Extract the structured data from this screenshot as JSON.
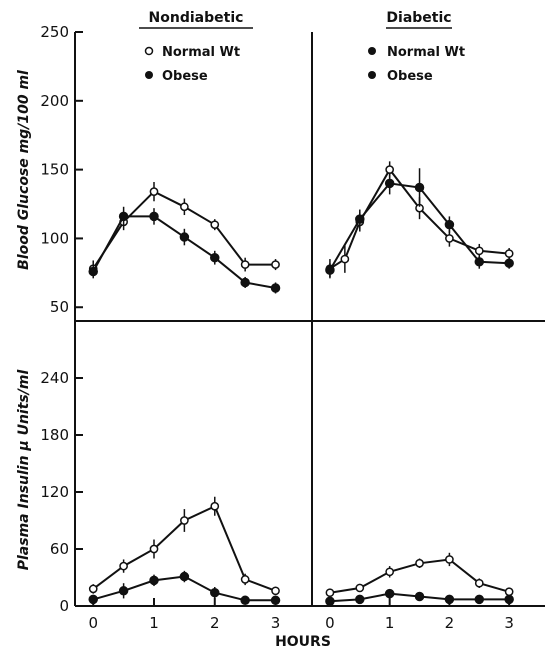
{
  "chart_data": [
    {
      "type": "line",
      "title": "Nondiabetic",
      "ylabel": "Blood Glucose mg/100 ml",
      "ylim": [
        40,
        250
      ],
      "yticks": [
        50,
        100,
        150,
        200,
        250
      ],
      "xlim": [
        -0.3,
        3.6
      ],
      "series": [
        {
          "name": "Normal Wt",
          "marker": "open",
          "x": [
            0,
            0.5,
            1,
            1.5,
            2,
            2.5,
            3
          ],
          "y": [
            78,
            112,
            134,
            123,
            110,
            81,
            81
          ],
          "err": [
            6,
            6,
            7,
            6,
            4,
            5,
            4
          ]
        },
        {
          "name": "Obese",
          "marker": "filled",
          "x": [
            0,
            0.5,
            1,
            1.5,
            2,
            2.5,
            3
          ],
          "y": [
            76,
            116,
            116,
            101,
            86,
            68,
            64
          ],
          "err": [
            5,
            7,
            6,
            6,
            5,
            4,
            4
          ]
        }
      ]
    },
    {
      "type": "line",
      "title": "Diabetic",
      "ylabel": "",
      "ylim": [
        40,
        250
      ],
      "xlim": [
        -0.3,
        3.6
      ],
      "series": [
        {
          "name": "Normal Wt",
          "marker": "open",
          "x": [
            0,
            0.25,
            0.5,
            1,
            1.5,
            2,
            2.5,
            3
          ],
          "y": [
            78,
            85,
            112,
            150,
            122,
            100,
            91,
            89
          ],
          "err": [
            7,
            10,
            7,
            6,
            8,
            6,
            5,
            4
          ]
        },
        {
          "name": "Obese",
          "marker": "filled",
          "x": [
            0,
            0.5,
            1,
            1.5,
            2,
            2.5,
            3
          ],
          "y": [
            77,
            114,
            140,
            137,
            110,
            83,
            82
          ],
          "err": [
            5,
            7,
            8,
            14,
            6,
            5,
            4
          ]
        }
      ]
    },
    {
      "type": "line",
      "title": "",
      "ylabel": "Plasma Insulin μ Units/ml",
      "ylim": [
        0,
        300
      ],
      "yticks": [
        0,
        60,
        120,
        180,
        240
      ],
      "xlim": [
        -0.3,
        3.6
      ],
      "xticks": [
        0,
        1,
        2,
        3
      ],
      "series": [
        {
          "name": "Normal Wt",
          "marker": "open",
          "x": [
            0,
            0.5,
            1,
            1.5,
            2,
            2.5,
            3
          ],
          "y": [
            18,
            42,
            60,
            90,
            105,
            28,
            16
          ],
          "err": [
            5,
            7,
            10,
            12,
            10,
            6,
            3
          ]
        },
        {
          "name": "Obese",
          "marker": "filled",
          "x": [
            0,
            0.5,
            1,
            1.5,
            2,
            2.5,
            3
          ],
          "y": [
            7,
            16,
            27,
            31,
            14,
            6,
            6
          ],
          "err": [
            3,
            8,
            6,
            6,
            6,
            2,
            2
          ]
        }
      ]
    },
    {
      "type": "line",
      "title": "",
      "ylabel": "",
      "ylim": [
        0,
        300
      ],
      "xlim": [
        -0.3,
        3.6
      ],
      "xticks": [
        0,
        1,
        2,
        3
      ],
      "series": [
        {
          "name": "Normal Wt",
          "marker": "open",
          "x": [
            0,
            0.5,
            1,
            1.5,
            2,
            2.5,
            3
          ],
          "y": [
            14,
            19,
            36,
            45,
            49,
            24,
            15
          ],
          "err": [
            3,
            4,
            6,
            5,
            7,
            5,
            3
          ]
        },
        {
          "name": "Obese",
          "marker": "filled",
          "x": [
            0,
            0.5,
            1,
            1.5,
            2,
            2.5,
            3
          ],
          "y": [
            5,
            7,
            13,
            10,
            7,
            7,
            7
          ],
          "err": [
            2,
            2,
            2,
            2,
            2,
            2,
            2
          ]
        }
      ]
    }
  ],
  "xlabel": "HOURS",
  "legends": [
    [
      "Normal Wt",
      "Obese"
    ],
    [
      "Normal Wt",
      "Obese"
    ]
  ]
}
